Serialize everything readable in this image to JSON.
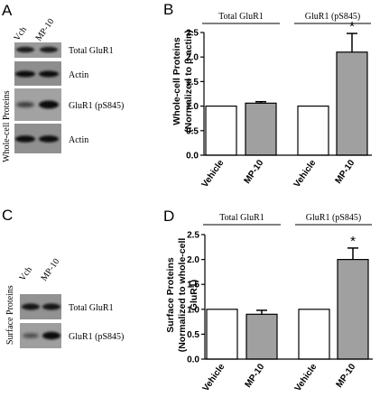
{
  "panels": {
    "A": {
      "letter": "A",
      "side_label": "Whole-cell Proteins",
      "lanes": [
        "Vch",
        "MP-10"
      ],
      "rows": [
        {
          "label": "Total GluR1"
        },
        {
          "label": "Actin"
        },
        {
          "label": "GluR1 (pS845)"
        },
        {
          "label": "Actin"
        }
      ]
    },
    "C": {
      "letter": "C",
      "side_label": "Surface Proteins",
      "lanes": [
        "Vch",
        "MP-10"
      ],
      "rows": [
        {
          "label": "Total GluR1"
        },
        {
          "label": "GluR1 (pS845)"
        }
      ]
    }
  },
  "chart_data": [
    {
      "panel": "B",
      "type": "bar",
      "categories": [
        "Vehicle",
        "MP-10",
        "Vehicle",
        "MP-10"
      ],
      "values": [
        1.0,
        1.06,
        1.0,
        2.1
      ],
      "errors": [
        0,
        0.03,
        0,
        0.38
      ],
      "bar_colors": [
        "#ffffff",
        "#a0a0a0",
        "#ffffff",
        "#a0a0a0"
      ],
      "significance": [
        "",
        "",
        "",
        "*"
      ],
      "groups": [
        {
          "label": "Total GluR1",
          "span": [
            0,
            1
          ]
        },
        {
          "label": "GluR1 (pS845)",
          "span": [
            2,
            3
          ]
        }
      ],
      "ylabel_line1": "Whole-cell Proteins",
      "ylabel_line2": "(Normalized to β-actin)",
      "ylim": [
        0,
        2.5
      ],
      "yticks": [
        "0.0",
        "0.5",
        "1.0",
        "1.5",
        "2.0",
        "2.5"
      ],
      "xlabel": "",
      "grid": false
    },
    {
      "panel": "D",
      "type": "bar",
      "categories": [
        "Vehicle",
        "MP-10",
        "Vehicle",
        "MP-10"
      ],
      "values": [
        1.0,
        0.9,
        1.0,
        2.0
      ],
      "errors": [
        0,
        0.08,
        0,
        0.23
      ],
      "bar_colors": [
        "#ffffff",
        "#a0a0a0",
        "#ffffff",
        "#a0a0a0"
      ],
      "significance": [
        "",
        "",
        "",
        "*"
      ],
      "groups": [
        {
          "label": "Total GluR1",
          "span": [
            0,
            1
          ]
        },
        {
          "label": "GluR1 (pS845)",
          "span": [
            2,
            3
          ]
        }
      ],
      "ylabel_line1": "Surface Proteins",
      "ylabel_line2": "(Normalized to whole-cell",
      "ylabel_line3": "GluR1)",
      "ylim": [
        0,
        2.5
      ],
      "yticks": [
        "0.0",
        "0.5",
        "1.0",
        "1.5",
        "2.0",
        "2.5"
      ],
      "xlabel": "",
      "grid": false
    }
  ],
  "letters": {
    "B": "B",
    "D": "D"
  }
}
